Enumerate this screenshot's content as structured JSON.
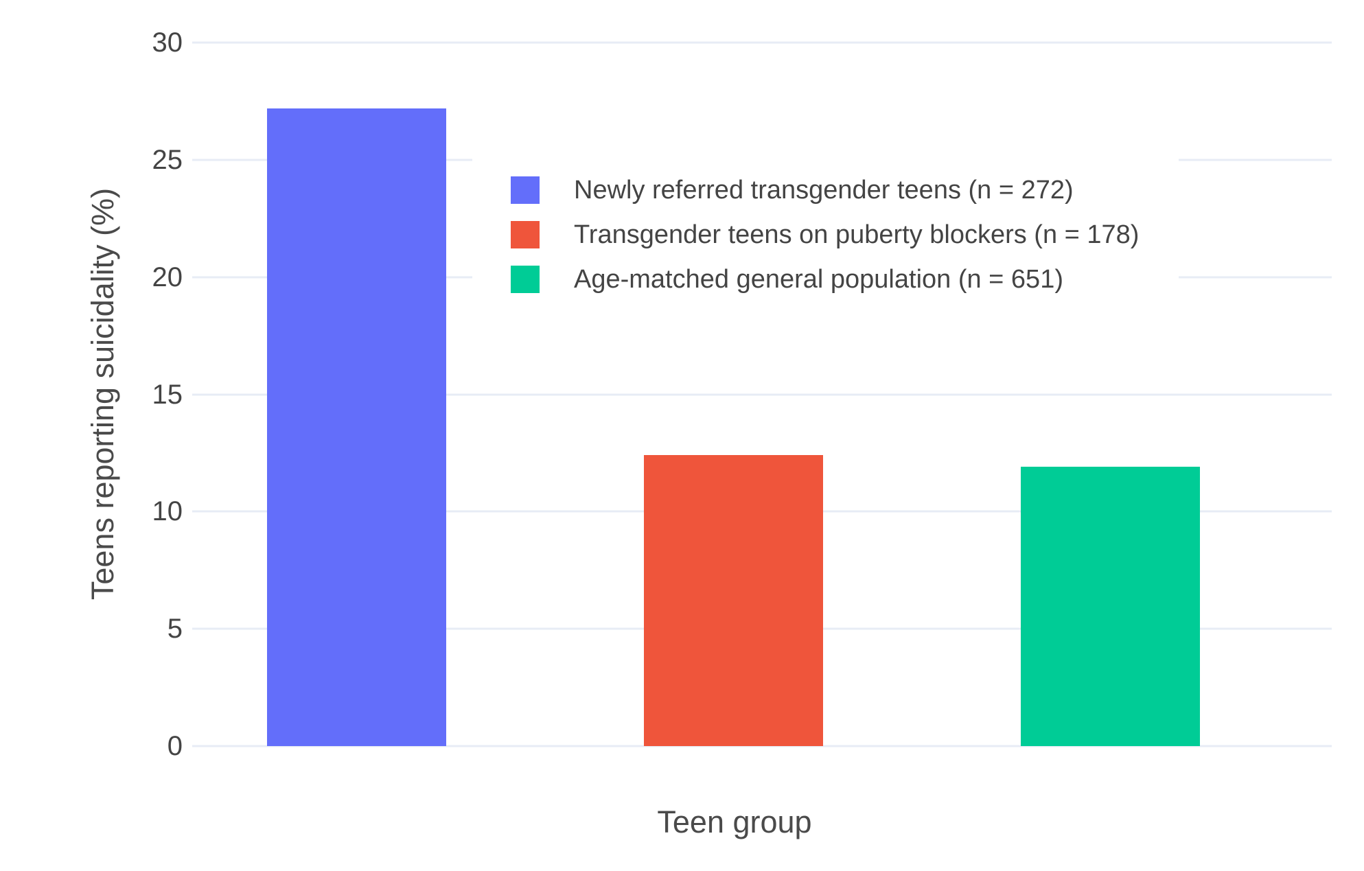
{
  "chart_data": {
    "type": "bar",
    "title": "",
    "xlabel": "Teen group",
    "ylabel": "Teens reporting suicidality (%)",
    "ylim": [
      0,
      30
    ],
    "grid": true,
    "legend_position": "inside top-center",
    "categories": [
      "Newly referred transgender teens (n = 272)",
      "Transgender teens on puberty blockers (n = 178)",
      "Age-matched general population (n = 651)"
    ],
    "values": [
      27.2,
      12.4,
      11.9
    ],
    "bar_colors": [
      "#636EFA",
      "#EF553B",
      "#00CC96"
    ]
  },
  "y_axis": {
    "title": "Teens reporting suicidality (%)",
    "ticks": [
      "0",
      "5",
      "10",
      "15",
      "20",
      "25",
      "30"
    ]
  },
  "x_axis": {
    "title": "Teen group"
  },
  "legend": {
    "items": [
      {
        "label": "Newly referred transgender teens (n = 272)",
        "color": "#636EFA"
      },
      {
        "label": "Transgender teens on puberty blockers (n = 178)",
        "color": "#EF553B"
      },
      {
        "label": "Age-matched general population (n = 651)",
        "color": "#00CC96"
      }
    ]
  },
  "colors": {
    "background": "#ffffff",
    "gridline": "#E7ECF5",
    "tick_text": "#444444",
    "axis_title_text": "#4a4a4a"
  }
}
